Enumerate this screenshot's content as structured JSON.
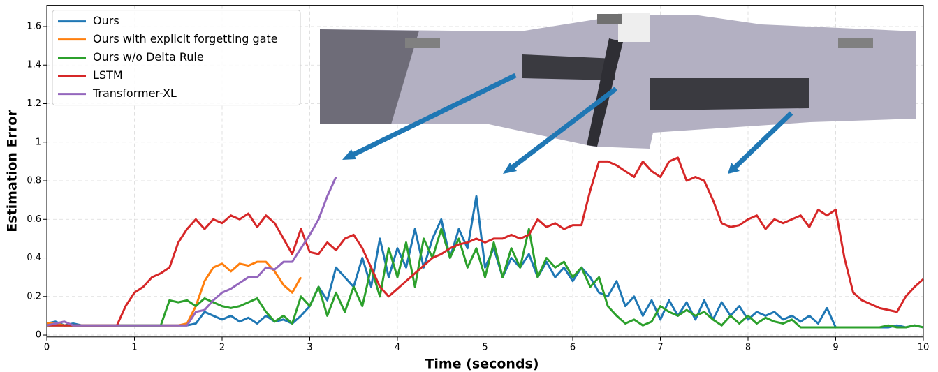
{
  "chart_data": {
    "type": "line",
    "xlabel": "Time (seconds)",
    "ylabel": "Estimation Error",
    "x": [
      0,
      0.1,
      0.2,
      0.3,
      0.4,
      0.5,
      0.6,
      0.7,
      0.8,
      0.9,
      1,
      1.1,
      1.2,
      1.3,
      1.4,
      1.5,
      1.6,
      1.7,
      1.8,
      1.9,
      2,
      2.1,
      2.2,
      2.3,
      2.4,
      2.5,
      2.6,
      2.7,
      2.8,
      2.9,
      3,
      3.1,
      3.2,
      3.3,
      3.4,
      3.5,
      3.6,
      3.7,
      3.8,
      3.9,
      4,
      4.1,
      4.2,
      4.3,
      4.4,
      4.5,
      4.6,
      4.7,
      4.8,
      4.9,
      5,
      5.1,
      5.2,
      5.3,
      5.4,
      5.5,
      5.6,
      5.7,
      5.8,
      5.9,
      6,
      6.1,
      6.2,
      6.3,
      6.4,
      6.5,
      6.6,
      6.7,
      6.8,
      6.9,
      7,
      7.1,
      7.2,
      7.3,
      7.4,
      7.5,
      7.6,
      7.7,
      7.8,
      7.9,
      8,
      8.1,
      8.2,
      8.3,
      8.4,
      8.5,
      8.6,
      8.7,
      8.8,
      8.9,
      9,
      9.1,
      9.2,
      9.3,
      9.4,
      9.5,
      9.6,
      9.7,
      9.8,
      9.9,
      10
    ],
    "series": [
      {
        "name": "Ours",
        "color": "#1f77b4",
        "values": [
          0.06,
          0.07,
          0.05,
          0.06,
          0.05,
          0.05,
          0.05,
          0.05,
          0.05,
          0.05,
          0.05,
          0.05,
          0.05,
          0.05,
          0.05,
          0.05,
          0.05,
          0.06,
          0.12,
          0.1,
          0.08,
          0.1,
          0.07,
          0.09,
          0.06,
          0.1,
          0.07,
          0.08,
          0.06,
          0.1,
          0.15,
          0.25,
          0.18,
          0.35,
          0.3,
          0.25,
          0.4,
          0.25,
          0.5,
          0.3,
          0.45,
          0.35,
          0.55,
          0.35,
          0.5,
          0.6,
          0.4,
          0.55,
          0.45,
          0.72,
          0.35,
          0.45,
          0.3,
          0.4,
          0.35,
          0.42,
          0.3,
          0.38,
          0.3,
          0.35,
          0.28,
          0.35,
          0.3,
          0.22,
          0.2,
          0.28,
          0.15,
          0.2,
          0.1,
          0.18,
          0.08,
          0.18,
          0.1,
          0.17,
          0.08,
          0.18,
          0.08,
          0.17,
          0.1,
          0.15,
          0.08,
          0.12,
          0.1,
          0.12,
          0.08,
          0.1,
          0.07,
          0.1,
          0.06,
          0.14,
          0.04,
          0.04,
          0.04,
          0.04,
          0.04,
          0.04,
          0.04,
          0.05,
          0.04,
          0.05,
          0.04
        ]
      },
      {
        "name": "Ours with explicit forgetting gate",
        "color": "#ff7f0e",
        "values": [
          0.06,
          0.06,
          0.05,
          0.05,
          0.05,
          0.05,
          0.05,
          0.05,
          0.05,
          0.05,
          0.05,
          0.05,
          0.05,
          0.05,
          0.05,
          0.05,
          0.06,
          0.15,
          0.28,
          0.35,
          0.37,
          0.33,
          0.37,
          0.36,
          0.38,
          0.38,
          0.33,
          0.26,
          0.22,
          0.3,
          null,
          null,
          null,
          null,
          null,
          null,
          null,
          null,
          null,
          null,
          null,
          null,
          null,
          null,
          null,
          null,
          null,
          null,
          null,
          null,
          null,
          null,
          null,
          null,
          null,
          null,
          null,
          null,
          null,
          null,
          null,
          null,
          null,
          null,
          null,
          null,
          null,
          null,
          null,
          null,
          null,
          null,
          null,
          null,
          null,
          null,
          null,
          null,
          null,
          null,
          null,
          null,
          null,
          null,
          null,
          null,
          null,
          null,
          null,
          null,
          null,
          null,
          null,
          null,
          null,
          null,
          null,
          null,
          null,
          null,
          null
        ]
      },
      {
        "name": "Ours w/o Delta Rule",
        "color": "#2ca02c",
        "values": [
          0.05,
          0.05,
          0.05,
          0.05,
          0.05,
          0.05,
          0.05,
          0.05,
          0.05,
          0.05,
          0.05,
          0.05,
          0.05,
          0.05,
          0.18,
          0.17,
          0.18,
          0.15,
          0.19,
          0.17,
          0.15,
          0.14,
          0.15,
          0.17,
          0.19,
          0.12,
          0.07,
          0.1,
          0.06,
          0.2,
          0.15,
          0.25,
          0.1,
          0.22,
          0.12,
          0.25,
          0.15,
          0.35,
          0.2,
          0.45,
          0.3,
          0.48,
          0.25,
          0.5,
          0.4,
          0.55,
          0.4,
          0.5,
          0.35,
          0.45,
          0.3,
          0.48,
          0.3,
          0.45,
          0.35,
          0.55,
          0.3,
          0.4,
          0.35,
          0.38,
          0.3,
          0.35,
          0.25,
          0.3,
          0.15,
          0.1,
          0.06,
          0.08,
          0.05,
          0.07,
          0.15,
          0.12,
          0.1,
          0.13,
          0.1,
          0.12,
          0.08,
          0.05,
          0.1,
          0.06,
          0.1,
          0.06,
          0.09,
          0.07,
          0.06,
          0.08,
          0.04,
          0.04,
          0.04,
          0.04,
          0.04,
          0.04,
          0.04,
          0.04,
          0.04,
          0.04,
          0.05,
          0.04,
          0.04,
          0.05,
          0.04
        ]
      },
      {
        "name": "LSTM",
        "color": "#d62728",
        "values": [
          0.05,
          0.05,
          0.05,
          0.05,
          0.05,
          0.05,
          0.05,
          0.05,
          0.05,
          0.15,
          0.22,
          0.25,
          0.3,
          0.32,
          0.35,
          0.48,
          0.55,
          0.6,
          0.55,
          0.6,
          0.58,
          0.62,
          0.6,
          0.63,
          0.56,
          0.62,
          0.58,
          0.5,
          0.42,
          0.55,
          0.43,
          0.42,
          0.48,
          0.44,
          0.5,
          0.52,
          0.45,
          0.35,
          0.25,
          0.2,
          0.24,
          0.28,
          0.32,
          0.36,
          0.4,
          0.42,
          0.45,
          0.47,
          0.48,
          0.5,
          0.48,
          0.5,
          0.5,
          0.52,
          0.5,
          0.52,
          0.6,
          0.56,
          0.58,
          0.55,
          0.57,
          0.57,
          0.75,
          0.9,
          0.9,
          0.88,
          0.85,
          0.82,
          0.9,
          0.85,
          0.82,
          0.9,
          0.92,
          0.8,
          0.82,
          0.8,
          0.7,
          0.58,
          0.56,
          0.57,
          0.6,
          0.62,
          0.55,
          0.6,
          0.58,
          0.6,
          0.62,
          0.56,
          0.65,
          0.62,
          0.65,
          0.4,
          0.22,
          0.18,
          0.16,
          0.14,
          0.13,
          0.12,
          0.2,
          0.25,
          0.29
        ]
      },
      {
        "name": "Transformer-XL",
        "color": "#9467bd",
        "values": [
          0.05,
          0.06,
          0.07,
          0.05,
          0.05,
          0.05,
          0.05,
          0.05,
          0.05,
          0.05,
          0.05,
          0.05,
          0.05,
          0.05,
          0.05,
          0.05,
          0.05,
          0.12,
          0.13,
          0.18,
          0.22,
          0.24,
          0.27,
          0.3,
          0.3,
          0.35,
          0.34,
          0.38,
          0.38,
          0.45,
          0.52,
          0.6,
          0.72,
          0.82,
          null,
          null,
          null,
          null,
          null,
          null,
          null,
          null,
          null,
          null,
          null,
          null,
          null,
          null,
          null,
          null,
          null,
          null,
          null,
          null,
          null,
          null,
          null,
          null,
          null,
          null,
          null,
          null,
          null,
          null,
          null,
          null,
          null,
          null,
          null,
          null,
          null,
          null,
          null,
          null,
          null,
          null,
          null,
          null,
          null,
          null,
          null,
          null,
          null,
          null,
          null,
          null,
          null,
          null,
          null,
          null,
          null,
          null,
          null,
          null,
          null,
          null,
          null,
          null,
          null,
          null,
          null
        ]
      }
    ],
    "xlim": [
      0,
      10
    ],
    "xticks": [
      0,
      1,
      2,
      3,
      4,
      5,
      6,
      7,
      8,
      9,
      10
    ],
    "ylim": [
      -0.01,
      1.71
    ],
    "yticks": [
      0.0,
      0.2,
      0.4,
      0.6,
      0.8,
      1.0,
      1.2,
      1.4,
      1.6
    ],
    "grid": true,
    "legend": "upper left"
  }
}
